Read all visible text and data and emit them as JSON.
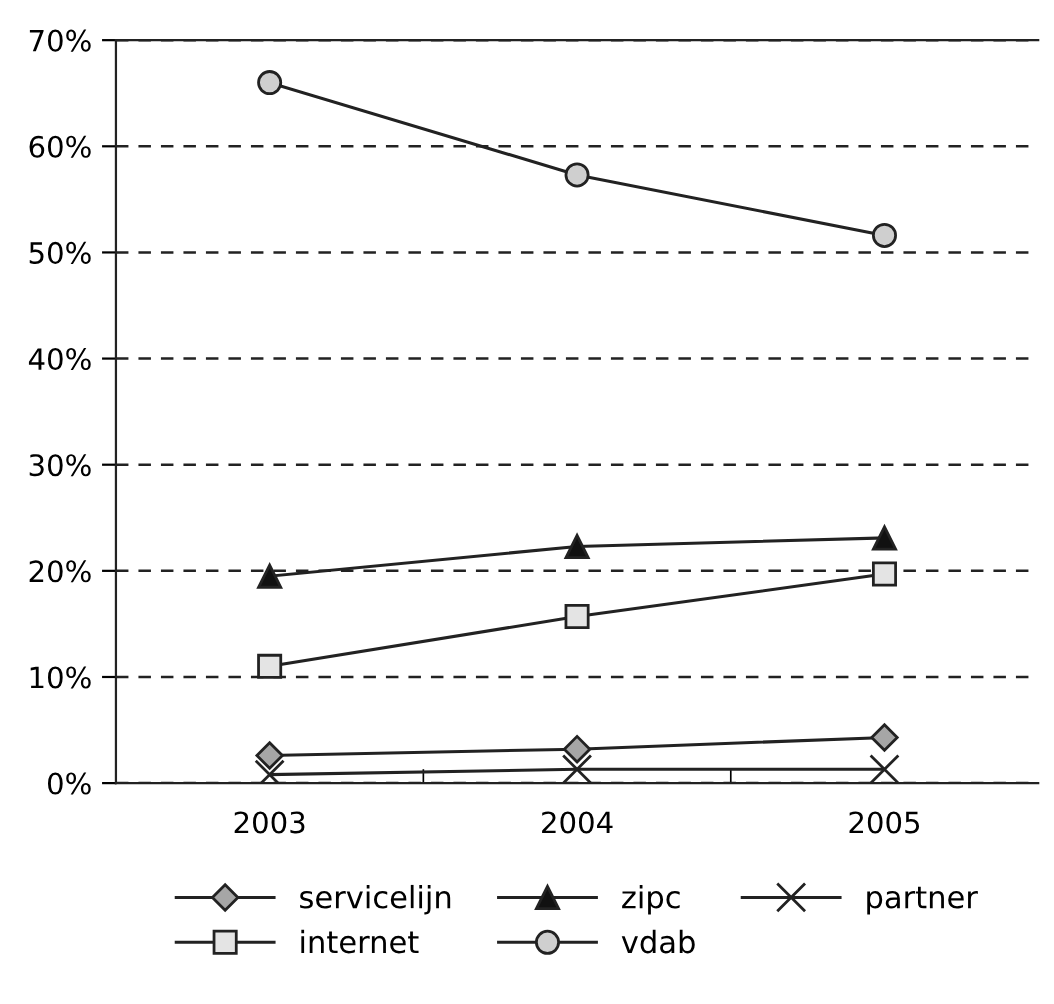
{
  "chart_data": {
    "type": "line",
    "categories": [
      "2003",
      "2004",
      "2005"
    ],
    "series": [
      {
        "name": "servicelijn",
        "color": "#a6a6a6",
        "marker": "diamond",
        "values": [
          2.6,
          3.2,
          4.3
        ]
      },
      {
        "name": "zipc",
        "color": "#111111",
        "marker": "triangle",
        "values": [
          19.5,
          22.3,
          23.1
        ]
      },
      {
        "name": "partner",
        "color": "#222222",
        "marker": "cross",
        "values": [
          0.8,
          1.3,
          1.3
        ]
      },
      {
        "name": "internet",
        "color": "#e4e4e4",
        "marker": "square",
        "values": [
          11.0,
          15.7,
          19.7
        ]
      },
      {
        "name": "vdab",
        "color": "#cfcfcf",
        "marker": "circle",
        "values": [
          66,
          57.3,
          51.6
        ]
      }
    ],
    "ylim": [
      0,
      70
    ],
    "yticks": [
      {
        "value": 0,
        "label": "0%"
      },
      {
        "value": 10,
        "label": "10%"
      },
      {
        "value": 20,
        "label": "20%"
      },
      {
        "value": 30,
        "label": "30%"
      },
      {
        "value": 40,
        "label": "40%"
      },
      {
        "value": 50,
        "label": "50%"
      },
      {
        "value": 60,
        "label": "60%"
      },
      {
        "value": 70,
        "label": "70%"
      }
    ],
    "grid": "y",
    "legend": "bottom",
    "line_style": "solid"
  }
}
